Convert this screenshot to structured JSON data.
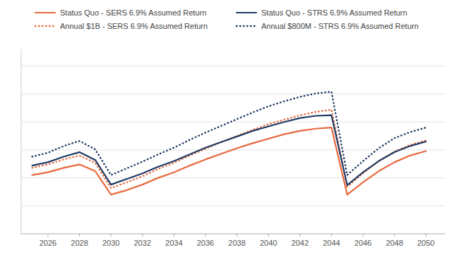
{
  "chart_data": {
    "type": "line",
    "x": [
      2025,
      2026,
      2027,
      2028,
      2029,
      2030,
      2031,
      2032,
      2033,
      2034,
      2035,
      2036,
      2037,
      2038,
      2039,
      2040,
      2041,
      2042,
      2043,
      2044,
      2045,
      2046,
      2047,
      2048,
      2049,
      2050
    ],
    "series": [
      {
        "name": "Status Quo - SERS 6.9% Assumed Return",
        "color": "#E8683C",
        "line_style": "solid",
        "values": [
          3.55,
          3.6,
          3.68,
          3.74,
          3.62,
          3.2,
          3.28,
          3.38,
          3.5,
          3.6,
          3.72,
          3.83,
          3.93,
          4.03,
          4.12,
          4.2,
          4.28,
          4.34,
          4.38,
          4.4,
          3.2,
          3.42,
          3.62,
          3.78,
          3.9,
          3.98
        ]
      },
      {
        "name": "Annual $1B - SERS 6.9% Assumed Return",
        "color": "#E8683C",
        "line_style": "dotted",
        "values": [
          3.68,
          3.74,
          3.83,
          3.9,
          3.77,
          3.32,
          3.42,
          3.53,
          3.66,
          3.77,
          3.9,
          4.02,
          4.14,
          4.25,
          4.36,
          4.46,
          4.54,
          4.62,
          4.68,
          4.72,
          3.34,
          3.58,
          3.8,
          3.97,
          4.09,
          4.17
        ]
      },
      {
        "name": "Status Quo - STRS 6.9% Assumed Return",
        "color": "#1F3A64",
        "line_style": "solid",
        "values": [
          3.72,
          3.78,
          3.88,
          3.96,
          3.82,
          3.38,
          3.48,
          3.58,
          3.7,
          3.8,
          3.92,
          4.04,
          4.14,
          4.24,
          4.34,
          4.42,
          4.5,
          4.57,
          4.61,
          4.62,
          3.37,
          3.6,
          3.8,
          3.96,
          4.07,
          4.15
        ]
      },
      {
        "name": "Annual $800M - STRS 6.9% Assumed Return",
        "color": "#1F3A64",
        "line_style": "dotted",
        "values": [
          3.88,
          3.95,
          4.07,
          4.16,
          4.01,
          3.55,
          3.67,
          3.79,
          3.92,
          4.04,
          4.18,
          4.31,
          4.43,
          4.55,
          4.67,
          4.78,
          4.87,
          4.95,
          5.01,
          5.04,
          3.55,
          3.8,
          4.03,
          4.21,
          4.32,
          4.4
        ]
      }
    ],
    "xlim": [
      2024.3,
      2051.2
    ],
    "xticks": [
      2026,
      2028,
      2030,
      2032,
      2034,
      2036,
      2038,
      2040,
      2042,
      2044,
      2046,
      2048,
      2050
    ],
    "ylim": [
      2.5,
      5.8
    ],
    "yticks": [
      2.5,
      3.0,
      3.5,
      4.0,
      4.5,
      5.0,
      5.5
    ],
    "grid": true,
    "tick_labels": "x",
    "legend": "top"
  }
}
